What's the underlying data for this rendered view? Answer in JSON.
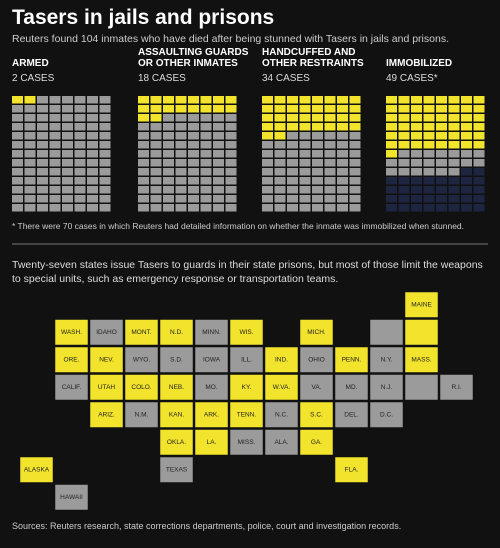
{
  "title": "Tasers in jails and prisons",
  "subtitle": "Reuters found 104 inmates who have died after being stunned with Tasers in jails and prisons.",
  "chart_data": {
    "type": "waffle",
    "total": 104,
    "colors": {
      "case": "#f2e42c",
      "other": "#9b9b9b",
      "unknown": "#1d2540"
    },
    "panels": [
      {
        "label": [
          "ARMED"
        ],
        "value": 2,
        "value_label": "2 CASES"
      },
      {
        "label": [
          "ASSAULTING GUARDS",
          "OR OTHER INMATES"
        ],
        "value": 18,
        "value_label": "18 CASES"
      },
      {
        "label": [
          "HANDCUFFED AND",
          "OTHER RESTRAINTS"
        ],
        "value": 34,
        "value_label": "34 CASES"
      },
      {
        "label": [
          "IMMOBILIZED"
        ],
        "value": 49,
        "value_label": "49 CASES*",
        "detailed_info_cases": 70
      }
    ]
  },
  "footnote": "* There were 70 cases in which Reuters had detailed information on whether the inmate was immobilized when stunned.",
  "map": {
    "text": "Twenty-seven states issue Tasers to guards in their state prisons, but most of those limit the weapons to special units, such as emergency response or transportation teams.",
    "colors": {
      "issues": "#f2e42c",
      "other": "#9b9b9b"
    },
    "states": [
      {
        "label": "MAINE",
        "issues": true
      },
      {
        "label": "WASH.",
        "issues": true
      },
      {
        "label": "IDAHO",
        "issues": false
      },
      {
        "label": "MONT.",
        "issues": true
      },
      {
        "label": "N.D.",
        "issues": true
      },
      {
        "label": "MINN.",
        "issues": false
      },
      {
        "label": "WIS.",
        "issues": true
      },
      {
        "label": "MICH.",
        "issues": true
      },
      {
        "label": null,
        "issues": false
      },
      {
        "label": null,
        "issues": true
      },
      {
        "label": "ORE.",
        "issues": true
      },
      {
        "label": "NEV.",
        "issues": true
      },
      {
        "label": "WYO.",
        "issues": false
      },
      {
        "label": "S.D.",
        "issues": false
      },
      {
        "label": "IOWA",
        "issues": false
      },
      {
        "label": "ILL.",
        "issues": false
      },
      {
        "label": "IND.",
        "issues": true
      },
      {
        "label": "OHIO",
        "issues": false
      },
      {
        "label": "PENN.",
        "issues": true
      },
      {
        "label": "N.Y.",
        "issues": false
      },
      {
        "label": "MASS.",
        "issues": true
      },
      {
        "label": "CALIF.",
        "issues": false
      },
      {
        "label": "UTAH",
        "issues": true
      },
      {
        "label": "COLO.",
        "issues": true
      },
      {
        "label": "NEB.",
        "issues": true
      },
      {
        "label": "MO.",
        "issues": false
      },
      {
        "label": "KY.",
        "issues": true
      },
      {
        "label": "W.VA.",
        "issues": true
      },
      {
        "label": "VA.",
        "issues": false
      },
      {
        "label": "MD.",
        "issues": false
      },
      {
        "label": "N.J.",
        "issues": false
      },
      {
        "label": null,
        "issues": false
      },
      {
        "label": "R.I.",
        "issues": false
      },
      {
        "label": "ARIZ.",
        "issues": true
      },
      {
        "label": "N.M.",
        "issues": false
      },
      {
        "label": "KAN.",
        "issues": true
      },
      {
        "label": "ARK.",
        "issues": true
      },
      {
        "label": "TENN.",
        "issues": true
      },
      {
        "label": "N.C.",
        "issues": false
      },
      {
        "label": "S.C.",
        "issues": true
      },
      {
        "label": "DEL.",
        "issues": false
      },
      {
        "label": "D.C.",
        "issues": false
      },
      {
        "label": "OKLA.",
        "issues": true
      },
      {
        "label": "LA.",
        "issues": true
      },
      {
        "label": "MISS.",
        "issues": false
      },
      {
        "label": "ALA.",
        "issues": false
      },
      {
        "label": "GA.",
        "issues": true
      },
      {
        "label": "ALASKA",
        "issues": true
      },
      {
        "label": "TEXAS",
        "issues": false
      },
      {
        "label": "FLA.",
        "issues": true
      },
      {
        "label": "HAWAII",
        "issues": false
      }
    ]
  },
  "sources": "Sources: Reuters research, state corrections departments, police, court and investigation records."
}
